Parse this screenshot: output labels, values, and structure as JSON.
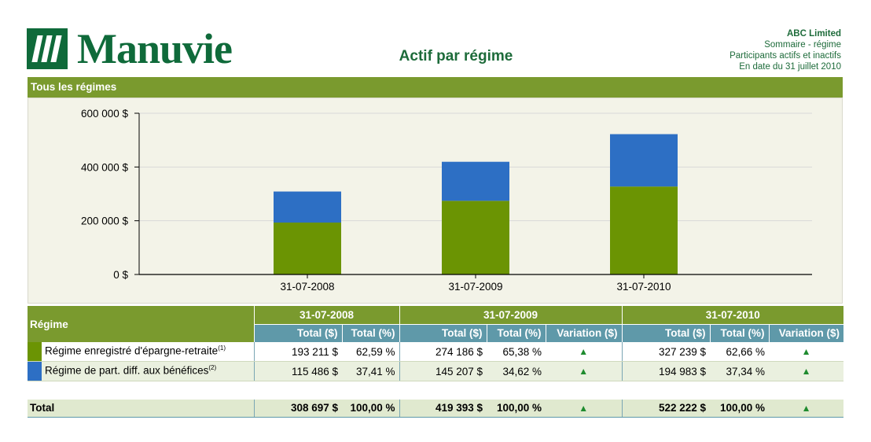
{
  "header": {
    "logo_text": "Manuvie",
    "title": "Actif par régime",
    "company": "ABC Limited",
    "info_lines": [
      "Sommaire - régime",
      "Participants actifs et inactifs",
      "En date du 31 juillet 2010"
    ]
  },
  "section": {
    "title": "Tous les régimes"
  },
  "colors": {
    "green": "#6b9403",
    "blue": "#2d6fc4",
    "header_green": "#7a9a2e",
    "header_teal": "#5f99a9"
  },
  "chart_data": {
    "type": "bar",
    "stacked": true,
    "categories": [
      "31-07-2008",
      "31-07-2009",
      "31-07-2010"
    ],
    "series": [
      {
        "name": "Régime enregistré d'épargne-retraite",
        "color": "#6b9403",
        "values": [
          193211,
          274186,
          327239
        ]
      },
      {
        "name": "Régime de part. diff. aux bénéfices",
        "color": "#2d6fc4",
        "values": [
          115486,
          145207,
          194983
        ]
      }
    ],
    "ylim": [
      0,
      600000
    ],
    "yticks": [
      0,
      200000,
      400000,
      600000
    ],
    "ytick_labels": [
      "0 $",
      "200 000 $",
      "400 000 $",
      "600 000 $"
    ],
    "grid": true,
    "legend": "none"
  },
  "table": {
    "regime_header": "Régime",
    "dates": [
      "31-07-2008",
      "31-07-2009",
      "31-07-2010"
    ],
    "col_total": "Total ($)",
    "col_pct": "Total (%)",
    "col_var": "Variation ($)",
    "arrow": "▲",
    "rows": [
      {
        "name": "Régime enregistré d'épargne-retraite",
        "note": "(1)",
        "color": "#6b9403",
        "v2008": "193 211 $",
        "p2008": "62,59 %",
        "v2009": "274 186 $",
        "p2009": "65,38 %",
        "v2010": "327 239 $",
        "p2010": "62,66 %"
      },
      {
        "name": "Régime de part. diff. aux bénéfices",
        "note": "(2)",
        "color": "#2d6fc4",
        "v2008": "115 486 $",
        "p2008": "37,41 %",
        "v2009": "145 207 $",
        "p2009": "34,62 %",
        "v2010": "194 983 $",
        "p2010": "37,34 %"
      }
    ],
    "total": {
      "label": "Total",
      "v2008": "308 697 $",
      "p2008": "100,00 %",
      "v2009": "419 393 $",
      "p2009": "100,00 %",
      "v2010": "522 222 $",
      "p2010": "100,00 %"
    }
  }
}
